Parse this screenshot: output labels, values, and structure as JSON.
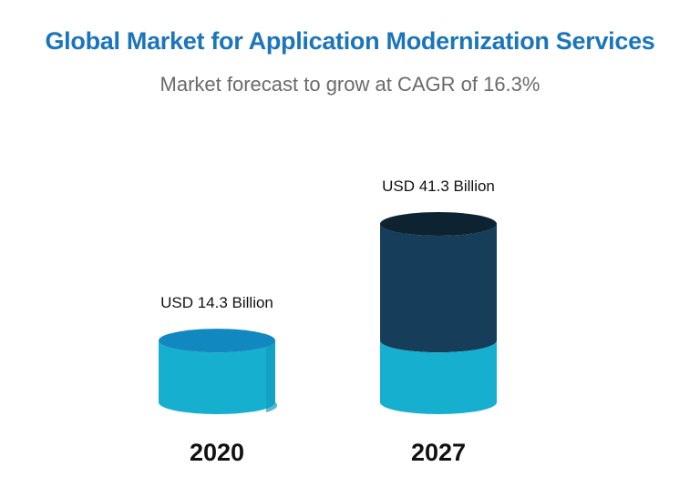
{
  "colors": {
    "title": "#1b75bb",
    "subtitle": "#6a6a6a",
    "base_fill": "#17afcf",
    "base_fill_dark": "#129cbb",
    "base_top": "#1188bf",
    "growth_fill": "#163e5a",
    "growth_top": "#0e2331",
    "label": "#111111"
  },
  "chart_data": {
    "type": "bar",
    "title": "Global Market for Application Modernization Services",
    "subtitle": "Market forecast to grow at CAGR of 16.3%",
    "categories": [
      "2020",
      "2027"
    ],
    "values": [
      14.3,
      41.3
    ],
    "value_labels": [
      "USD 14.3 Billion",
      "USD 41.3 Billion"
    ],
    "unit": "USD Billion",
    "grid": false,
    "legend": "none"
  }
}
